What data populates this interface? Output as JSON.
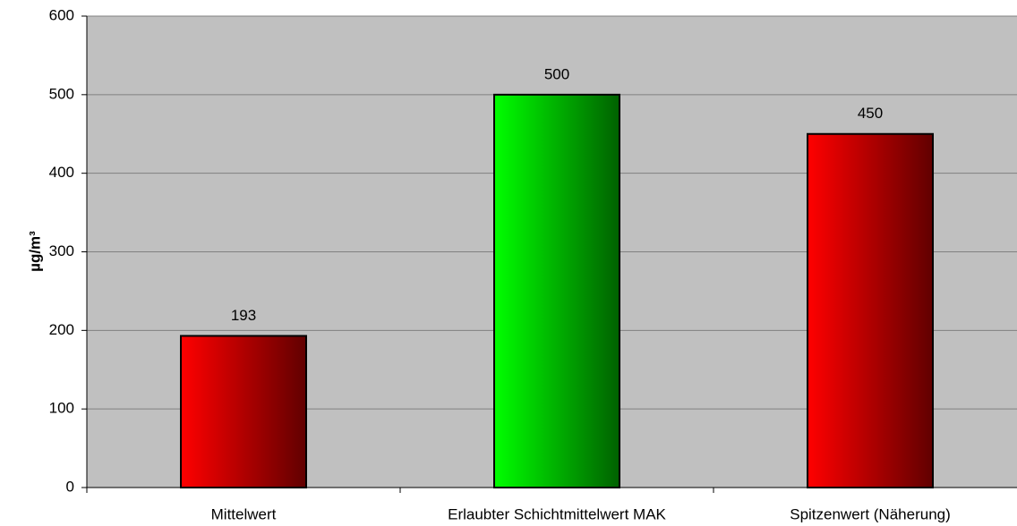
{
  "chart_data": {
    "type": "bar",
    "y_label": "µg/m³",
    "categories": [
      "Mittelwert",
      "Erlaubter Schichtmittelwert MAK",
      "Spitzenwert (Näherung)"
    ],
    "values": [
      193,
      500,
      450
    ],
    "colors": [
      "#ff0000",
      "#00ff00",
      "#ff0000"
    ],
    "ylim": [
      0,
      600
    ],
    "yticks": [
      0,
      100,
      200,
      300,
      400,
      500,
      600
    ],
    "grid": true
  }
}
